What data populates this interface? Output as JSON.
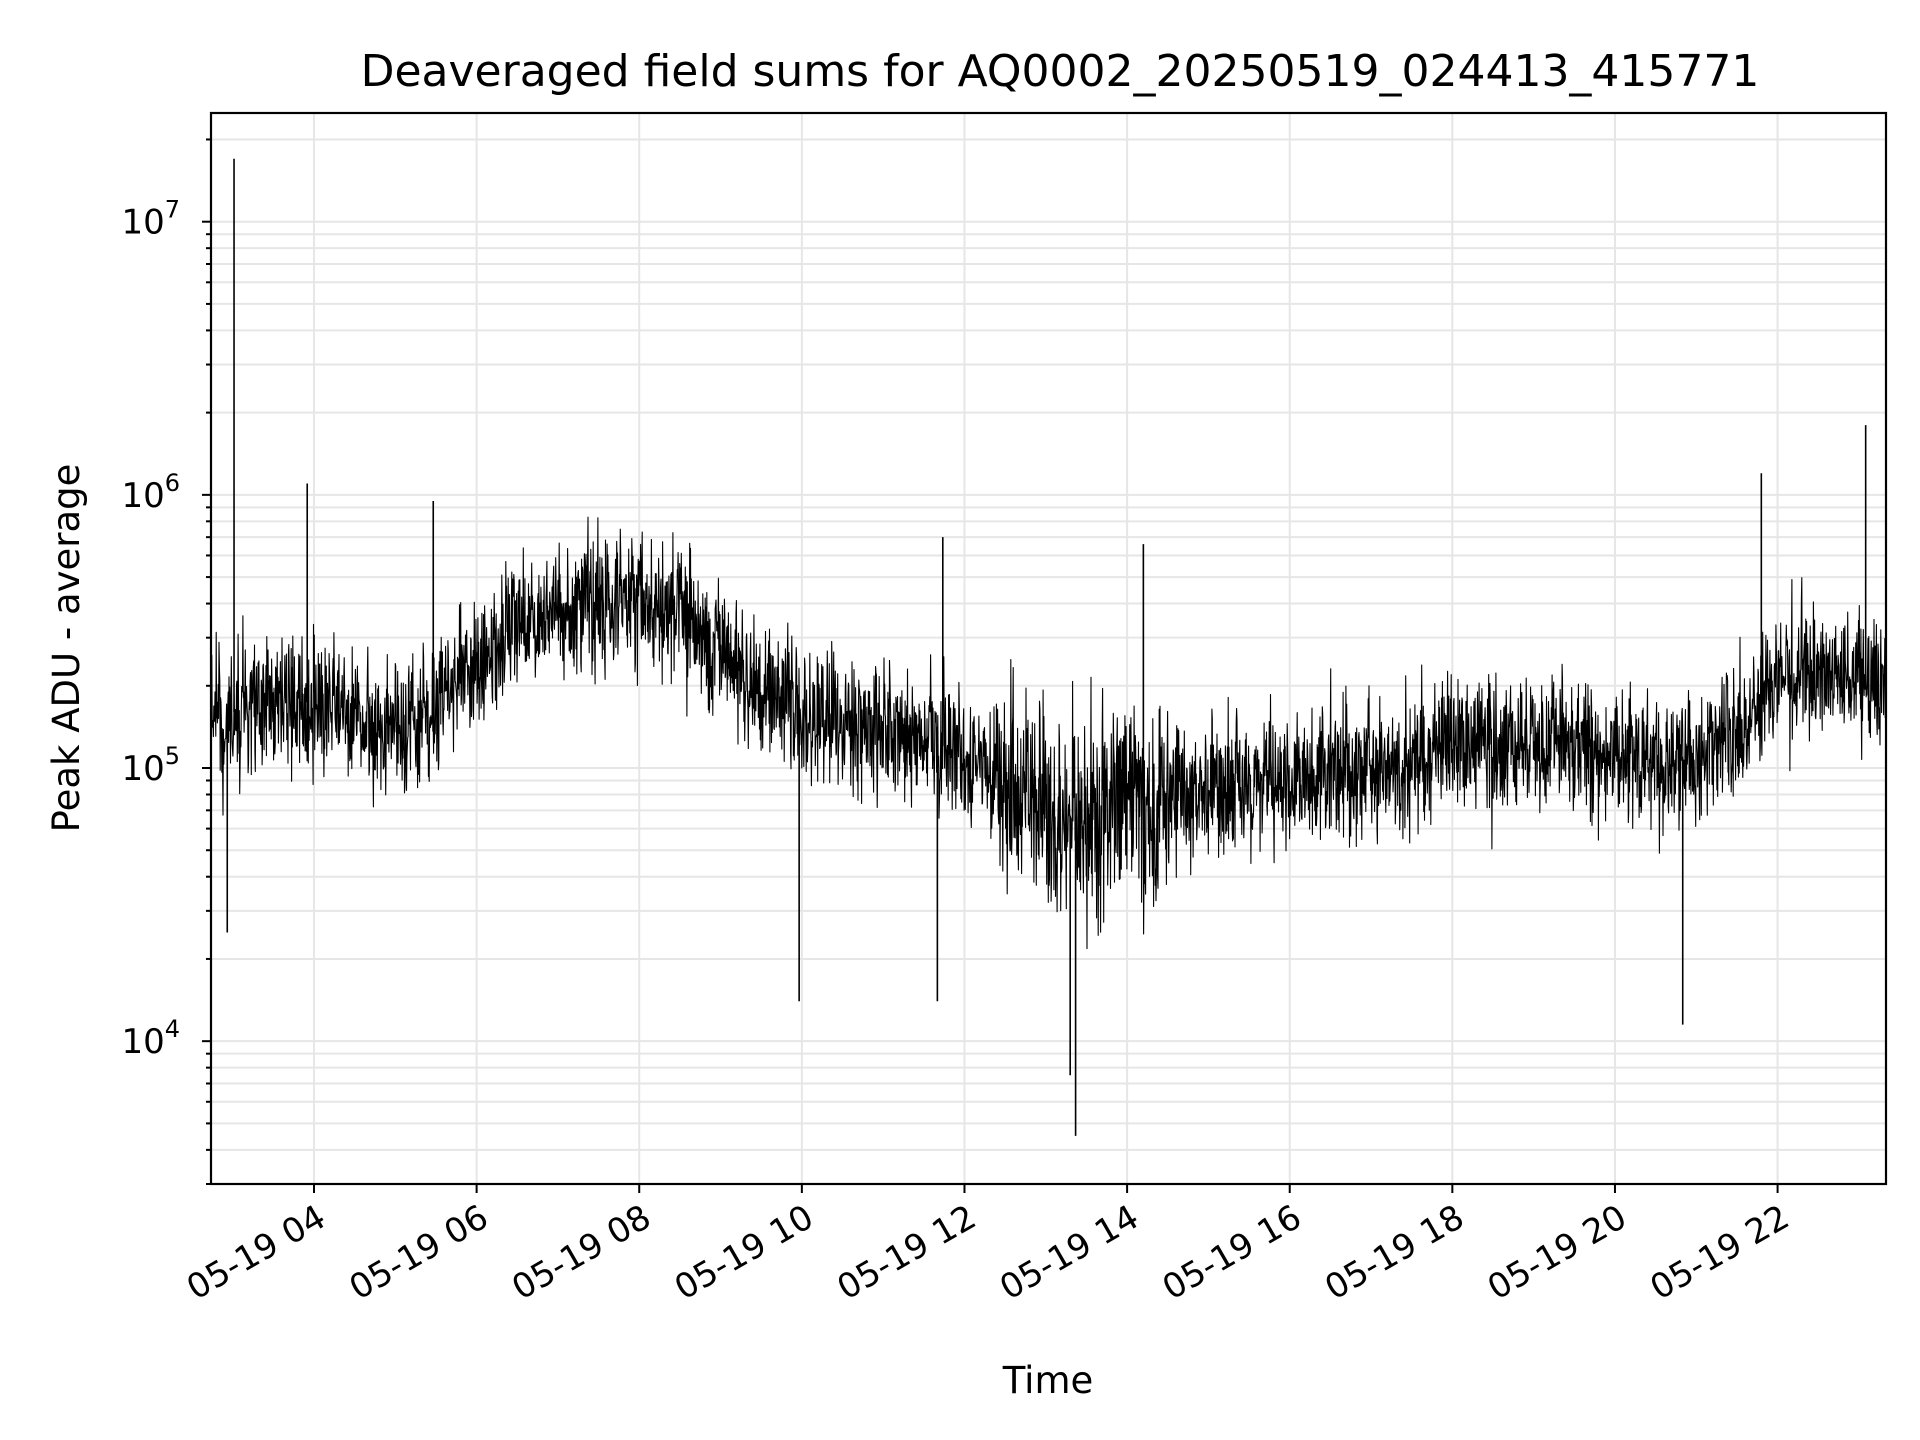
{
  "chart_data": {
    "type": "line",
    "title": "Deaveraged field sums for AQ0002_20250519_024413_415771",
    "xlabel": "Time",
    "ylabel": "Peak ADU - average",
    "yscale": "log",
    "ylim": [
      3000,
      25000000
    ],
    "xlim": [
      "2025-05-19 02:44",
      "2025-05-19 23:20"
    ],
    "grid": true,
    "color": "#000000",
    "x_ticks": [
      {
        "t": "2025-05-19 04:00",
        "label": "05-19 04"
      },
      {
        "t": "2025-05-19 06:00",
        "label": "05-19 06"
      },
      {
        "t": "2025-05-19 08:00",
        "label": "05-19 08"
      },
      {
        "t": "2025-05-19 10:00",
        "label": "05-19 10"
      },
      {
        "t": "2025-05-19 12:00",
        "label": "05-19 12"
      },
      {
        "t": "2025-05-19 14:00",
        "label": "05-19 14"
      },
      {
        "t": "2025-05-19 16:00",
        "label": "05-19 16"
      },
      {
        "t": "2025-05-19 18:00",
        "label": "05-19 18"
      },
      {
        "t": "2025-05-19 20:00",
        "label": "05-19 20"
      },
      {
        "t": "2025-05-19 22:00",
        "label": "05-19 22"
      }
    ],
    "y_ticks": [
      {
        "value": 10000,
        "base": "10",
        "exp": "4"
      },
      {
        "value": 100000,
        "base": "10",
        "exp": "5"
      },
      {
        "value": 1000000,
        "base": "10",
        "exp": "6"
      },
      {
        "value": 10000000,
        "base": "10",
        "exp": "7"
      }
    ],
    "series": [
      {
        "x": [
          "2025-05-19 02:44",
          "2025-05-19 03:00",
          "2025-05-19 03:30",
          "2025-05-19 04:00",
          "2025-05-19 04:30",
          "2025-05-19 05:00",
          "2025-05-19 05:30",
          "2025-05-19 06:00",
          "2025-05-19 06:30",
          "2025-05-19 07:00",
          "2025-05-19 07:30",
          "2025-05-19 08:00",
          "2025-05-19 08:30",
          "2025-05-19 09:00",
          "2025-05-19 09:30",
          "2025-05-19 10:00",
          "2025-05-19 10:30",
          "2025-05-19 11:00",
          "2025-05-19 11:30",
          "2025-05-19 12:00",
          "2025-05-19 12:30",
          "2025-05-19 13:00",
          "2025-05-19 13:30",
          "2025-05-19 14:00",
          "2025-05-19 14:30",
          "2025-05-19 15:00",
          "2025-05-19 15:30",
          "2025-05-19 16:00",
          "2025-05-19 16:30",
          "2025-05-19 17:00",
          "2025-05-19 17:30",
          "2025-05-19 18:00",
          "2025-05-19 18:30",
          "2025-05-19 19:00",
          "2025-05-19 19:30",
          "2025-05-19 20:00",
          "2025-05-19 20:30",
          "2025-05-19 21:00",
          "2025-05-19 21:30",
          "2025-05-19 22:00",
          "2025-05-19 22:30",
          "2025-05-19 23:00",
          "2025-05-19 23:20"
        ],
        "y": [
          150000,
          160000,
          170000,
          175000,
          165000,
          130000,
          170000,
          250000,
          330000,
          380000,
          420000,
          430000,
          380000,
          260000,
          190000,
          160000,
          150000,
          140000,
          130000,
          110000,
          90000,
          70000,
          65000,
          75000,
          80000,
          80000,
          85000,
          90000,
          95000,
          100000,
          105000,
          120000,
          125000,
          125000,
          120000,
          115000,
          110000,
          110000,
          140000,
          200000,
          230000,
          210000,
          180000
        ]
      }
    ],
    "spikes": [
      {
        "t": "2025-05-19 03:01",
        "y": 17000000
      },
      {
        "t": "2025-05-19 03:55",
        "y": 1100000
      },
      {
        "t": "2025-05-19 05:28",
        "y": 950000
      },
      {
        "t": "2025-05-19 11:44",
        "y": 700000
      },
      {
        "t": "2025-05-19 14:12",
        "y": 660000
      },
      {
        "t": "2025-05-19 23:05",
        "y": 1800000
      },
      {
        "t": "2025-05-19 21:48",
        "y": 1200000
      },
      {
        "t": "2025-05-19 02:56",
        "y": 25000
      },
      {
        "t": "2025-05-19 13:22",
        "y": 4500
      },
      {
        "t": "2025-05-19 13:18",
        "y": 7500
      },
      {
        "t": "2025-05-19 09:58",
        "y": 14000
      },
      {
        "t": "2025-05-19 11:40",
        "y": 14000
      },
      {
        "t": "2025-05-19 20:50",
        "y": 11500
      }
    ]
  }
}
